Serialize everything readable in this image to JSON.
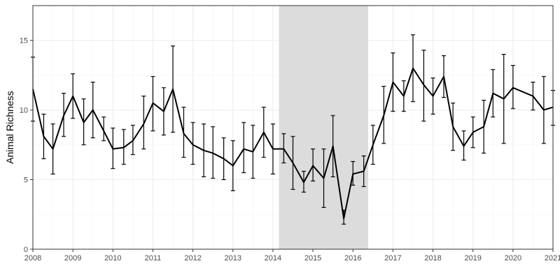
{
  "chart_data": {
    "type": "line",
    "title": "",
    "xlabel": "",
    "ylabel": "Animal Richness",
    "xlim": [
      2008.0,
      2021.0
    ],
    "ylim": [
      0,
      17.5
    ],
    "xticks": [
      2008,
      2009,
      2010,
      2011,
      2012,
      2013,
      2014,
      2015,
      2016,
      2017,
      2018,
      2019,
      2020,
      2021
    ],
    "yticks": [
      0,
      5,
      10,
      15
    ],
    "grid": true,
    "highlight": {
      "start": 2014.15,
      "end": 2016.38
    },
    "series": [
      {
        "name": "Animal Richness",
        "points": [
          {
            "x": 2008.0,
            "y": 11.5,
            "lo": 9.2,
            "hi": 13.8
          },
          {
            "x": 2008.27,
            "y": 8.1,
            "lo": 6.5,
            "hi": 9.7
          },
          {
            "x": 2008.5,
            "y": 7.2,
            "lo": 5.4,
            "hi": 9.0
          },
          {
            "x": 2008.77,
            "y": 9.6,
            "lo": 8.1,
            "hi": 11.2
          },
          {
            "x": 2009.0,
            "y": 11.0,
            "lo": 9.4,
            "hi": 12.6
          },
          {
            "x": 2009.27,
            "y": 9.1,
            "lo": 7.5,
            "hi": 10.8
          },
          {
            "x": 2009.5,
            "y": 10.0,
            "lo": 8.0,
            "hi": 12.0
          },
          {
            "x": 2009.77,
            "y": 8.5,
            "lo": 7.8,
            "hi": 9.5
          },
          {
            "x": 2010.0,
            "y": 7.2,
            "lo": 5.8,
            "hi": 8.7
          },
          {
            "x": 2010.27,
            "y": 7.3,
            "lo": 6.1,
            "hi": 8.6
          },
          {
            "x": 2010.5,
            "y": 7.8,
            "lo": 6.8,
            "hi": 8.9
          },
          {
            "x": 2010.77,
            "y": 9.0,
            "lo": 7.2,
            "hi": 11.0
          },
          {
            "x": 2011.0,
            "y": 10.5,
            "lo": 8.5,
            "hi": 12.4
          },
          {
            "x": 2011.27,
            "y": 9.9,
            "lo": 8.2,
            "hi": 11.6
          },
          {
            "x": 2011.5,
            "y": 11.5,
            "lo": 8.4,
            "hi": 14.6
          },
          {
            "x": 2011.77,
            "y": 8.3,
            "lo": 6.6,
            "hi": 10.2
          },
          {
            "x": 2012.0,
            "y": 7.5,
            "lo": 6.1,
            "hi": 9.1
          },
          {
            "x": 2012.27,
            "y": 7.1,
            "lo": 5.2,
            "hi": 9.0
          },
          {
            "x": 2012.5,
            "y": 6.9,
            "lo": 5.1,
            "hi": 8.8
          },
          {
            "x": 2012.77,
            "y": 6.5,
            "lo": 5.0,
            "hi": 8.0
          },
          {
            "x": 2013.0,
            "y": 6.0,
            "lo": 4.2,
            "hi": 7.8
          },
          {
            "x": 2013.27,
            "y": 7.2,
            "lo": 5.5,
            "hi": 9.1
          },
          {
            "x": 2013.5,
            "y": 7.0,
            "lo": 5.1,
            "hi": 8.9
          },
          {
            "x": 2013.77,
            "y": 8.4,
            "lo": 6.6,
            "hi": 10.2
          },
          {
            "x": 2014.0,
            "y": 7.2,
            "lo": 5.4,
            "hi": 9.0
          },
          {
            "x": 2014.27,
            "y": 7.2,
            "lo": 6.2,
            "hi": 8.3
          },
          {
            "x": 2014.5,
            "y": 6.2,
            "lo": 4.3,
            "hi": 8.1
          },
          {
            "x": 2014.77,
            "y": 4.8,
            "lo": 4.1,
            "hi": 5.6
          },
          {
            "x": 2015.0,
            "y": 6.0,
            "lo": 4.9,
            "hi": 7.2
          },
          {
            "x": 2015.27,
            "y": 5.1,
            "lo": 3.0,
            "hi": 7.2
          },
          {
            "x": 2015.5,
            "y": 7.4,
            "lo": 5.2,
            "hi": 9.6
          },
          {
            "x": 2015.77,
            "y": 2.2,
            "lo": 1.8,
            "hi": 2.8
          },
          {
            "x": 2016.0,
            "y": 5.4,
            "lo": 4.6,
            "hi": 6.3
          },
          {
            "x": 2016.27,
            "y": 5.6,
            "lo": 4.5,
            "hi": 6.7
          },
          {
            "x": 2016.5,
            "y": 7.5,
            "lo": 6.1,
            "hi": 8.9
          },
          {
            "x": 2016.77,
            "y": 9.6,
            "lo": 7.6,
            "hi": 11.7
          },
          {
            "x": 2017.0,
            "y": 12.0,
            "lo": 9.9,
            "hi": 14.1
          },
          {
            "x": 2017.27,
            "y": 11.0,
            "lo": 9.9,
            "hi": 12.1
          },
          {
            "x": 2017.5,
            "y": 13.0,
            "lo": 10.6,
            "hi": 15.4
          },
          {
            "x": 2017.77,
            "y": 11.8,
            "lo": 9.2,
            "hi": 14.3
          },
          {
            "x": 2018.0,
            "y": 11.0,
            "lo": 9.7,
            "hi": 12.3
          },
          {
            "x": 2018.27,
            "y": 12.4,
            "lo": 10.9,
            "hi": 13.9
          },
          {
            "x": 2018.5,
            "y": 8.8,
            "lo": 7.1,
            "hi": 10.5
          },
          {
            "x": 2018.77,
            "y": 7.4,
            "lo": 6.4,
            "hi": 8.5
          },
          {
            "x": 2019.0,
            "y": 8.4,
            "lo": 7.3,
            "hi": 9.5
          },
          {
            "x": 2019.27,
            "y": 8.8,
            "lo": 6.9,
            "hi": 10.7
          },
          {
            "x": 2019.5,
            "y": 11.2,
            "lo": 9.5,
            "hi": 12.9
          },
          {
            "x": 2019.77,
            "y": 10.8,
            "lo": 7.6,
            "hi": 14.0
          },
          {
            "x": 2020.0,
            "y": 11.6,
            "lo": 10.1,
            "hi": 13.2
          },
          {
            "x": 2020.5,
            "y": 11.0,
            "lo": 10.0,
            "hi": 12.0
          },
          {
            "x": 2020.77,
            "y": 10.0,
            "lo": 7.6,
            "hi": 12.4
          },
          {
            "x": 2021.0,
            "y": 10.2,
            "lo": 8.9,
            "hi": 11.4
          }
        ]
      }
    ]
  },
  "colors": {
    "background": "#ffffff",
    "panel_border": "#333333",
    "grid_major": "#ebebeb",
    "grid_minor": "#f5f5f5",
    "highlight": "#dcdcdc",
    "line": "#000000"
  }
}
